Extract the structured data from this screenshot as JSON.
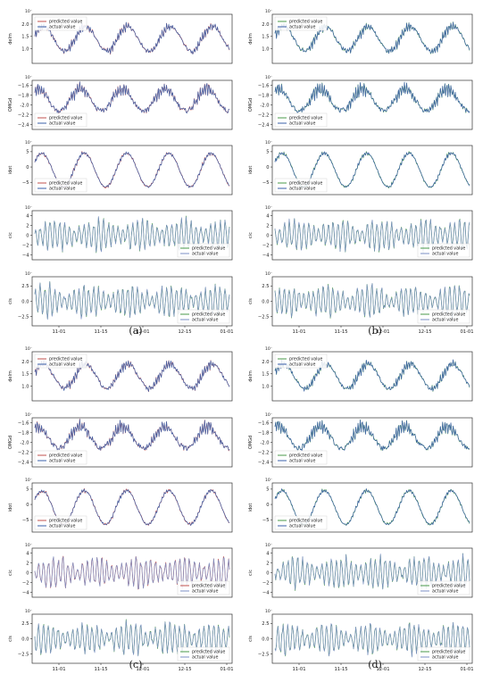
{
  "figure": {
    "panels": [
      {
        "caption": "(a)"
      },
      {
        "caption": "(b)"
      },
      {
        "caption": "(c)"
      },
      {
        "caption": "(d)"
      }
    ]
  },
  "colors": {
    "predicted_a": "#c0504d",
    "predicted_other": "#4a9a4a",
    "actual": "#3a5fa8",
    "actual_light": "#7b8fc4"
  },
  "chart_data": [
    {
      "type": "line",
      "group": "(a)",
      "ylabel": "delm",
      "exponent": "10⁻",
      "yticks": [
        1.0,
        1.5,
        2.0
      ],
      "ylim": [
        0.4,
        2.4
      ],
      "legend": [
        "predicted value",
        "actual value"
      ],
      "legend_position": "upper-left",
      "series": [
        {
          "name": "predicted value",
          "color": "#c0504d"
        },
        {
          "name": "actual value",
          "color": "#3a5fa8"
        }
      ],
      "waveform": {
        "mean": 1.4,
        "amplitude": 0.5,
        "cycles": 4.6,
        "phase": 0.3,
        "ripple": 0.18
      }
    },
    {
      "type": "line",
      "group": "(a)",
      "ylabel": "OMGd",
      "exponent": "10⁻",
      "yticks": [
        -2.4,
        -2.2,
        -2.0,
        -1.8,
        -1.6
      ],
      "ylim": [
        -2.5,
        -1.5
      ],
      "legend": [
        "predicted value",
        "actual value"
      ],
      "legend_position": "lower-left",
      "series": [
        {
          "name": "predicted value",
          "color": "#c0504d"
        },
        {
          "name": "actual value",
          "color": "#3a5fa8"
        }
      ],
      "waveform": {
        "mean": -1.9,
        "amplitude": 0.22,
        "cycles": 4.6,
        "phase": 1.1,
        "ripple": 0.12
      }
    },
    {
      "type": "line",
      "group": "(a)",
      "ylabel": "idot",
      "exponent": "10⁻",
      "yticks": [
        -5,
        0,
        5
      ],
      "ylim": [
        -9,
        7
      ],
      "legend": [
        "predicted value",
        "actual value"
      ],
      "legend_position": "lower-left",
      "series": [
        {
          "name": "predicted value",
          "color": "#c0504d"
        },
        {
          "name": "actual value",
          "color": "#3a5fa8"
        }
      ],
      "waveform": {
        "mean": -1,
        "amplitude": 5.5,
        "cycles": 4.6,
        "phase": 0.5,
        "ripple": 0.6
      }
    },
    {
      "type": "line",
      "group": "(a)",
      "ylabel": "cic",
      "exponent": "10⁻",
      "yticks": [
        -4,
        -2,
        0,
        2,
        4
      ],
      "ylim": [
        -5,
        5
      ],
      "legend": [
        "predicted value",
        "actual value"
      ],
      "legend_position": "lower-right",
      "series": [
        {
          "name": "predicted value",
          "color": "#4a9a4a"
        },
        {
          "name": "actual value",
          "color": "#7b8fc4"
        }
      ],
      "waveform": {
        "mean": 0,
        "amplitude": 3.8,
        "cycles": 40,
        "phase": 0,
        "ripple": 0,
        "oscillatory": true
      }
    },
    {
      "type": "line",
      "group": "(a)",
      "ylabel": "cis",
      "exponent": "10⁻",
      "yticks": [
        -2.5,
        0.0,
        2.5
      ],
      "ylim": [
        -4,
        4
      ],
      "xticks": [
        "11-01",
        "11-15",
        "12-01",
        "12-15",
        "01-01"
      ],
      "legend": [
        "predicted value",
        "actual value"
      ],
      "legend_position": "lower-right",
      "series": [
        {
          "name": "predicted value",
          "color": "#4a9a4a"
        },
        {
          "name": "actual value",
          "color": "#7b8fc4"
        }
      ],
      "waveform": {
        "mean": 0,
        "amplitude": 3.0,
        "cycles": 40,
        "phase": 0.8,
        "ripple": 0,
        "oscillatory": true
      }
    },
    {
      "type": "line",
      "group": "(b)",
      "ylabel": "delm",
      "exponent": "10⁻",
      "yticks": [
        1.0,
        1.5,
        2.0
      ],
      "ylim": [
        0.4,
        2.4
      ],
      "legend": [
        "predicted value",
        "actual value"
      ],
      "legend_position": "upper-left",
      "series": [
        {
          "name": "predicted value",
          "color": "#4a9a4a"
        },
        {
          "name": "actual value",
          "color": "#3a5fa8"
        }
      ],
      "waveform": {
        "mean": 1.4,
        "amplitude": 0.5,
        "cycles": 4.6,
        "phase": 0.3,
        "ripple": 0.18
      }
    },
    {
      "type": "line",
      "group": "(b)",
      "ylabel": "OMGd",
      "exponent": "10⁻",
      "yticks": [
        -2.4,
        -2.2,
        -2.0,
        -1.8,
        -1.6
      ],
      "ylim": [
        -2.5,
        -1.5
      ],
      "legend": [
        "predicted value",
        "actual value"
      ],
      "legend_position": "lower-left",
      "series": [
        {
          "name": "predicted value",
          "color": "#4a9a4a"
        },
        {
          "name": "actual value",
          "color": "#3a5fa8"
        }
      ],
      "waveform": {
        "mean": -1.9,
        "amplitude": 0.22,
        "cycles": 4.6,
        "phase": 1.1,
        "ripple": 0.12
      }
    },
    {
      "type": "line",
      "group": "(b)",
      "ylabel": "idot",
      "exponent": "10⁻",
      "yticks": [
        -5,
        0,
        5
      ],
      "ylim": [
        -9,
        7
      ],
      "legend": [
        "predicted value",
        "actual value"
      ],
      "legend_position": "lower-left",
      "series": [
        {
          "name": "predicted value",
          "color": "#4a9a4a"
        },
        {
          "name": "actual value",
          "color": "#3a5fa8"
        }
      ],
      "waveform": {
        "mean": -1,
        "amplitude": 5.5,
        "cycles": 4.6,
        "phase": 0.5,
        "ripple": 0.6
      }
    },
    {
      "type": "line",
      "group": "(b)",
      "ylabel": "cic",
      "exponent": "10⁻",
      "yticks": [
        -4,
        -2,
        0,
        2,
        4
      ],
      "ylim": [
        -5,
        5
      ],
      "legend": [
        "predicted value",
        "actual value"
      ],
      "legend_position": "lower-right",
      "series": [
        {
          "name": "predicted value",
          "color": "#4a9a4a"
        },
        {
          "name": "actual value",
          "color": "#7b8fc4"
        }
      ],
      "waveform": {
        "mean": 0,
        "amplitude": 3.8,
        "cycles": 40,
        "phase": 0,
        "ripple": 0,
        "oscillatory": true
      }
    },
    {
      "type": "line",
      "group": "(b)",
      "ylabel": "cis",
      "exponent": "10⁻",
      "yticks": [
        -2.5,
        0.0,
        2.5
      ],
      "ylim": [
        -4,
        4
      ],
      "xticks": [
        "11-01",
        "11-15",
        "12-01",
        "12-15",
        "01-01"
      ],
      "legend": [
        "predicted value",
        "actual value"
      ],
      "legend_position": "lower-right",
      "series": [
        {
          "name": "predicted value",
          "color": "#4a9a4a"
        },
        {
          "name": "actual value",
          "color": "#7b8fc4"
        }
      ],
      "waveform": {
        "mean": 0,
        "amplitude": 3.0,
        "cycles": 40,
        "phase": 0.8,
        "ripple": 0,
        "oscillatory": true
      }
    },
    {
      "type": "line",
      "group": "(c)",
      "ylabel": "delm",
      "exponent": "10⁻",
      "yticks": [
        1.0,
        1.5,
        2.0
      ],
      "ylim": [
        0.4,
        2.4
      ],
      "legend": [
        "predicted value",
        "actual value"
      ],
      "legend_position": "upper-left",
      "series": [
        {
          "name": "predicted value",
          "color": "#c0504d"
        },
        {
          "name": "actual value",
          "color": "#3a5fa8"
        }
      ],
      "waveform": {
        "mean": 1.4,
        "amplitude": 0.5,
        "cycles": 4.6,
        "phase": 0.3,
        "ripple": 0.18
      }
    },
    {
      "type": "line",
      "group": "(c)",
      "ylabel": "OMGd",
      "exponent": "10⁻",
      "yticks": [
        -2.4,
        -2.2,
        -2.0,
        -1.8,
        -1.6
      ],
      "ylim": [
        -2.5,
        -1.5
      ],
      "legend": [
        "predicted value",
        "actual value"
      ],
      "legend_position": "lower-left",
      "series": [
        {
          "name": "predicted value",
          "color": "#c0504d"
        },
        {
          "name": "actual value",
          "color": "#3a5fa8"
        }
      ],
      "waveform": {
        "mean": -1.9,
        "amplitude": 0.22,
        "cycles": 4.6,
        "phase": 1.1,
        "ripple": 0.12
      }
    },
    {
      "type": "line",
      "group": "(c)",
      "ylabel": "idot",
      "exponent": "10⁻",
      "yticks": [
        -5,
        0,
        5
      ],
      "ylim": [
        -9,
        7
      ],
      "legend": [
        "predicted value",
        "actual value"
      ],
      "legend_position": "lower-left",
      "series": [
        {
          "name": "predicted value",
          "color": "#c0504d"
        },
        {
          "name": "actual value",
          "color": "#3a5fa8"
        }
      ],
      "waveform": {
        "mean": -1,
        "amplitude": 5.5,
        "cycles": 4.6,
        "phase": 0.5,
        "ripple": 0.6
      }
    },
    {
      "type": "line",
      "group": "(c)",
      "ylabel": "cic",
      "exponent": "10⁻",
      "yticks": [
        -4,
        -2,
        0,
        2,
        4
      ],
      "ylim": [
        -5,
        5
      ],
      "legend": [
        "predicted value",
        "actual value"
      ],
      "legend_position": "lower-right",
      "series": [
        {
          "name": "predicted value",
          "color": "#c0504d"
        },
        {
          "name": "actual value",
          "color": "#7b8fc4"
        }
      ],
      "waveform": {
        "mean": 0,
        "amplitude": 3.8,
        "cycles": 40,
        "phase": 0,
        "ripple": 0,
        "oscillatory": true
      }
    },
    {
      "type": "line",
      "group": "(c)",
      "ylabel": "cis",
      "exponent": "10⁻",
      "yticks": [
        -2.5,
        0.0,
        2.5
      ],
      "ylim": [
        -4,
        4
      ],
      "xticks": [
        "11-01",
        "11-15",
        "12-01",
        "12-15",
        "01-01"
      ],
      "legend": [
        "predicted value",
        "actual value"
      ],
      "legend_position": "lower-right",
      "series": [
        {
          "name": "predicted value",
          "color": "#4a9a4a"
        },
        {
          "name": "actual value",
          "color": "#7b8fc4"
        }
      ],
      "waveform": {
        "mean": 0,
        "amplitude": 3.0,
        "cycles": 40,
        "phase": 0.8,
        "ripple": 0,
        "oscillatory": true
      }
    },
    {
      "type": "line",
      "group": "(d)",
      "ylabel": "delm",
      "exponent": "10⁻",
      "yticks": [
        1.0,
        1.5,
        2.0
      ],
      "ylim": [
        0.4,
        2.4
      ],
      "legend": [
        "predicted value",
        "actual value"
      ],
      "legend_position": "upper-left",
      "series": [
        {
          "name": "predicted value",
          "color": "#4a9a4a"
        },
        {
          "name": "actual value",
          "color": "#3a5fa8"
        }
      ],
      "waveform": {
        "mean": 1.4,
        "amplitude": 0.5,
        "cycles": 4.6,
        "phase": 0.3,
        "ripple": 0.18
      }
    },
    {
      "type": "line",
      "group": "(d)",
      "ylabel": "OMGd",
      "exponent": "10⁻",
      "yticks": [
        -2.4,
        -2.2,
        -2.0,
        -1.8,
        -1.6
      ],
      "ylim": [
        -2.5,
        -1.5
      ],
      "legend": [
        "predicted value",
        "actual value"
      ],
      "legend_position": "lower-left",
      "series": [
        {
          "name": "predicted value",
          "color": "#4a9a4a"
        },
        {
          "name": "actual value",
          "color": "#3a5fa8"
        }
      ],
      "waveform": {
        "mean": -1.9,
        "amplitude": 0.22,
        "cycles": 4.6,
        "phase": 1.1,
        "ripple": 0.12
      }
    },
    {
      "type": "line",
      "group": "(d)",
      "ylabel": "idot",
      "exponent": "10⁻",
      "yticks": [
        -5,
        0,
        5
      ],
      "ylim": [
        -9,
        7
      ],
      "legend": [
        "predicted value",
        "actual value"
      ],
      "legend_position": "lower-left",
      "series": [
        {
          "name": "predicted value",
          "color": "#4a9a4a"
        },
        {
          "name": "actual value",
          "color": "#3a5fa8"
        }
      ],
      "waveform": {
        "mean": -1,
        "amplitude": 5.5,
        "cycles": 4.6,
        "phase": 0.5,
        "ripple": 0.6
      }
    },
    {
      "type": "line",
      "group": "(d)",
      "ylabel": "cic",
      "exponent": "10⁻",
      "yticks": [
        -4,
        -2,
        0,
        2,
        4
      ],
      "ylim": [
        -5,
        5
      ],
      "legend": [
        "predicted value",
        "actual value"
      ],
      "legend_position": "lower-right",
      "series": [
        {
          "name": "predicted value",
          "color": "#4a9a4a"
        },
        {
          "name": "actual value",
          "color": "#7b8fc4"
        }
      ],
      "waveform": {
        "mean": 0,
        "amplitude": 3.8,
        "cycles": 40,
        "phase": 0,
        "ripple": 0,
        "oscillatory": true
      }
    },
    {
      "type": "line",
      "group": "(d)",
      "ylabel": "cis",
      "exponent": "10⁻",
      "yticks": [
        -2.5,
        0.0,
        2.5
      ],
      "ylim": [
        -4,
        4
      ],
      "xticks": [
        "11-01",
        "11-15",
        "12-01",
        "12-15",
        "01-01"
      ],
      "legend": [
        "predicted value",
        "actual value"
      ],
      "legend_position": "lower-right",
      "series": [
        {
          "name": "predicted value",
          "color": "#4a9a4a"
        },
        {
          "name": "actual value",
          "color": "#7b8fc4"
        }
      ],
      "waveform": {
        "mean": 0,
        "amplitude": 3.0,
        "cycles": 40,
        "phase": 0.8,
        "ripple": 0,
        "oscillatory": true
      }
    }
  ]
}
